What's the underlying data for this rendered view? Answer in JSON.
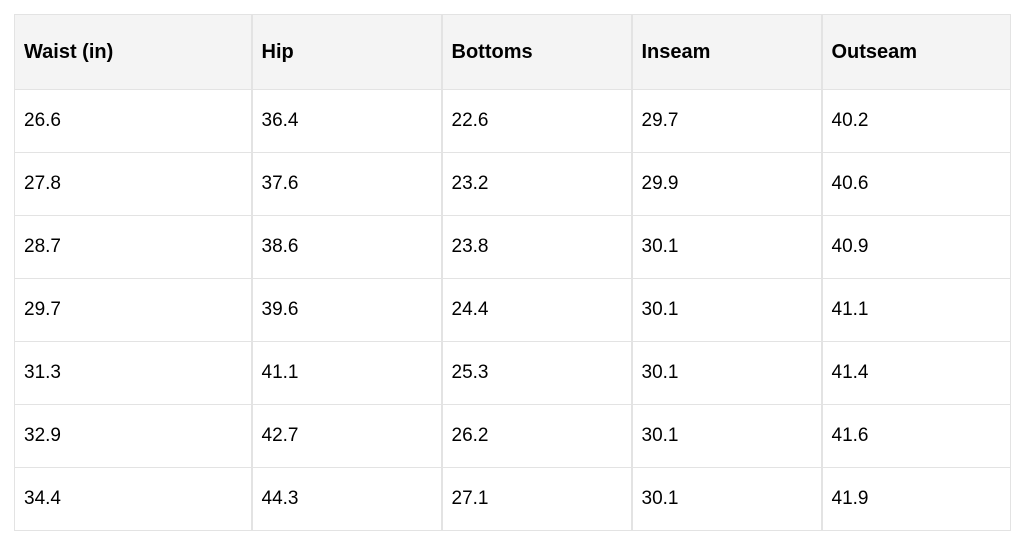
{
  "table": {
    "headers": [
      "Waist (in)",
      "Hip",
      "Bottoms",
      "Inseam",
      "Outseam"
    ],
    "rows": [
      [
        "26.6",
        "36.4",
        "22.6",
        "29.7",
        "40.2"
      ],
      [
        "27.8",
        "37.6",
        "23.2",
        "29.9",
        "40.6"
      ],
      [
        "28.7",
        "38.6",
        "23.8",
        "30.1",
        "40.9"
      ],
      [
        "29.7",
        "39.6",
        "24.4",
        "30.1",
        "41.1"
      ],
      [
        "31.3",
        "41.1",
        "25.3",
        "30.1",
        "41.4"
      ],
      [
        "32.9",
        "42.7",
        "26.2",
        "30.1",
        "41.6"
      ],
      [
        "34.4",
        "44.3",
        "27.1",
        "30.1",
        "41.9"
      ]
    ]
  }
}
